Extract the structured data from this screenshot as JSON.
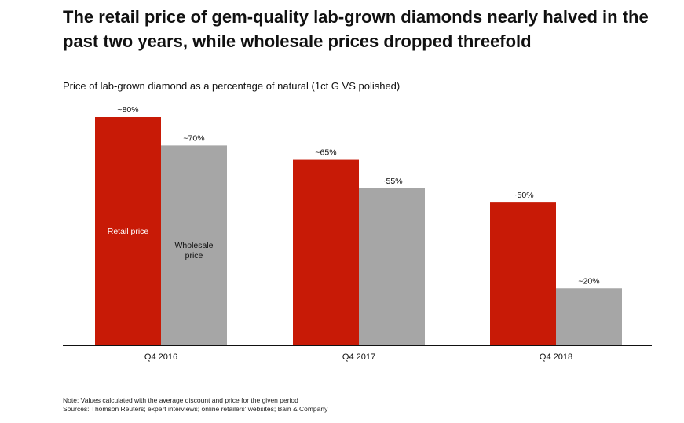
{
  "header": {
    "title": "The retail price of gem-quality lab-grown diamonds nearly halved in the past two years, while wholesale prices dropped threefold",
    "subtitle": "Price of lab-grown diamond as a percentage of natural (1ct G VS polished)"
  },
  "chart_data": {
    "type": "bar",
    "title": "",
    "xlabel": "",
    "ylabel": "",
    "ylim": [
      0,
      80
    ],
    "grid": false,
    "categories": [
      "Q4 2016",
      "Q4 2017",
      "Q4 2018"
    ],
    "series": [
      {
        "name": "Retail price",
        "values": [
          80,
          65,
          50
        ],
        "labels": [
          "~80%",
          "~65%",
          "~50%"
        ],
        "color": "#c81a06"
      },
      {
        "name": "Wholesale price",
        "values": [
          70,
          55,
          20
        ],
        "labels": [
          "~70%",
          "~55%",
          "~20%"
        ],
        "color": "#a6a6a6"
      }
    ],
    "series_label_lines": [
      [
        "Retail price"
      ],
      [
        "Wholesale",
        "price"
      ]
    ]
  },
  "footer": {
    "note": "Note: Values calculated with the average discount and price for the given period",
    "sources": "Sources: Thomson Reuters; expert interviews; online retailers' websites; Bain & Company"
  }
}
